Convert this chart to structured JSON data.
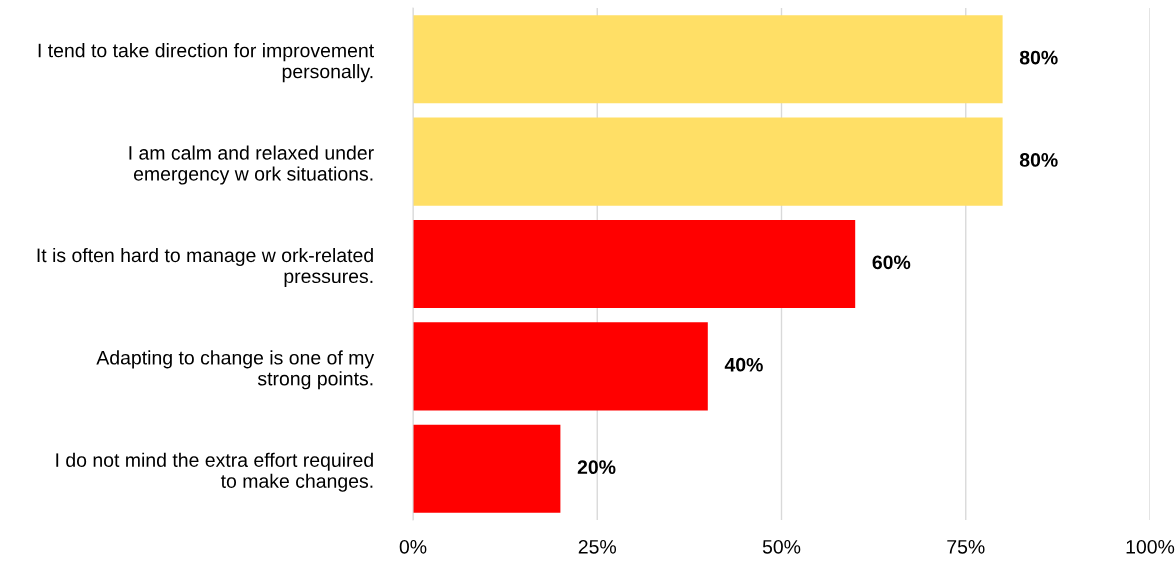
{
  "chart_data": {
    "type": "bar",
    "orientation": "horizontal",
    "categories": [
      "I tend to take direction for improvement\npersonally.",
      "I am calm and relaxed under\nemergency w ork situations.",
      "It is often hard to manage w ork-related\npressures.",
      "Adapting to change is one of my\nstrong points.",
      "I do not mind the extra effort required\nto make changes."
    ],
    "values": [
      80,
      80,
      60,
      40,
      20
    ],
    "colors": [
      "#ffdf66",
      "#ffdf66",
      "#ff0000",
      "#ff0000",
      "#ff0000"
    ],
    "value_labels": [
      "80%",
      "80%",
      "60%",
      "40%",
      "20%"
    ],
    "xlim": [
      0,
      100
    ],
    "xticks": [
      {
        "value": 0,
        "label": "0%"
      },
      {
        "value": 25,
        "label": "25%"
      },
      {
        "value": 50,
        "label": "50%"
      },
      {
        "value": 75,
        "label": "75%"
      },
      {
        "value": 100,
        "label": "100%"
      }
    ],
    "grid": "x"
  }
}
